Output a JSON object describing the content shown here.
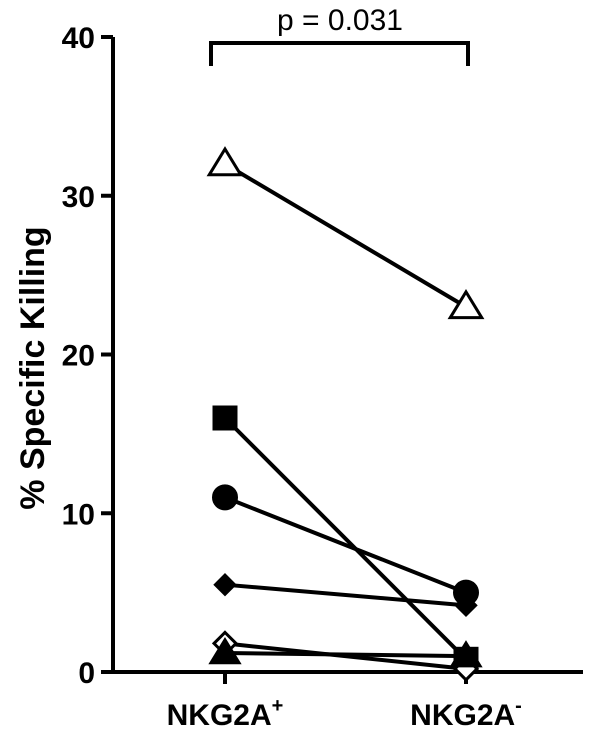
{
  "chart_data": {
    "type": "scatter",
    "ylabel": "% Specific Killing",
    "xlabel": "",
    "ylim": [
      0,
      40
    ],
    "yticks": [
      0,
      10,
      20,
      30,
      40
    ],
    "categories": [
      {
        "base": "NKG2A",
        "sup": "+"
      },
      {
        "base": "NKG2A",
        "sup": "-"
      }
    ],
    "annotation": "p = 0.031",
    "series": [
      {
        "marker": "triangle-open",
        "values": [
          32,
          23
        ]
      },
      {
        "marker": "square-filled",
        "values": [
          16,
          0.8
        ]
      },
      {
        "marker": "circle-filled",
        "values": [
          11,
          5
        ]
      },
      {
        "marker": "diamond-filled",
        "values": [
          5.5,
          4.2
        ]
      },
      {
        "marker": "diamond-open",
        "values": [
          1.8,
          0.2
        ]
      },
      {
        "marker": "triangle-filled",
        "values": [
          1.2,
          1
        ]
      }
    ],
    "colors": {
      "ink": "#000000",
      "background": "#ffffff"
    }
  }
}
